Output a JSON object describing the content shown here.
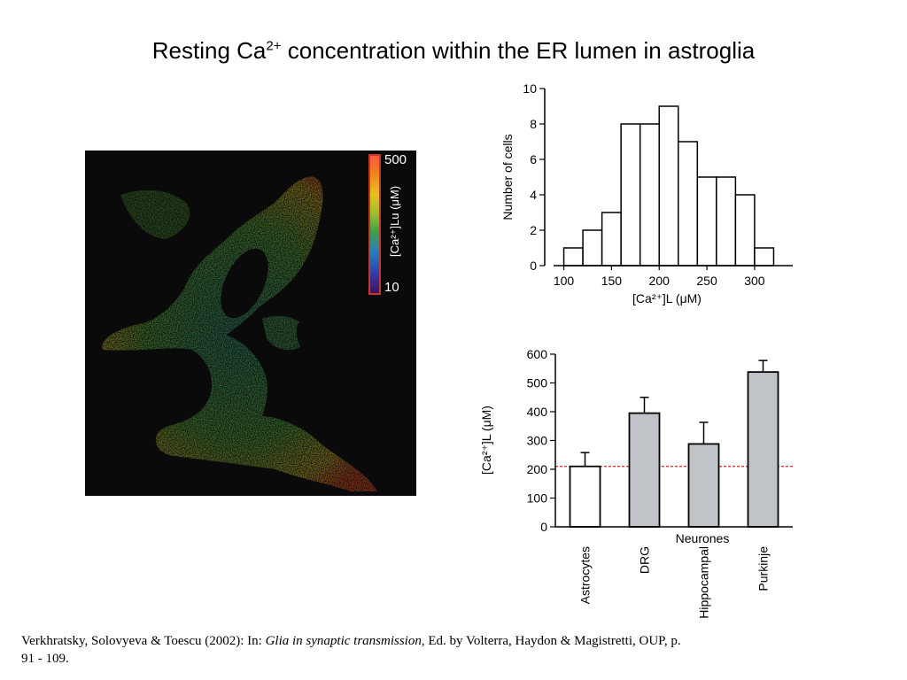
{
  "title": {
    "text": "Resting Ca",
    "sup": "2+",
    "rest": " concentration within the ER lumen in astroglia"
  },
  "image_panel": {
    "colorbar_max": "500",
    "colorbar_min": "10",
    "colorbar_label": "[Ca²⁺]Lu (μM)"
  },
  "citation": {
    "before": "Verkhratsky, Solovyeva & Toescu (2002): In: ",
    "book": "Glia in synaptic transmission",
    "after": ", Ed. by Volterra, Haydon & Magistretti, OUP, p. 91 - 109."
  },
  "chart_data": [
    {
      "type": "bar",
      "subtype": "histogram",
      "bin_edges": [
        100,
        120,
        140,
        160,
        180,
        200,
        220,
        240,
        260,
        280,
        300,
        320
      ],
      "counts": [
        1,
        2,
        3,
        8,
        8,
        9,
        7,
        5,
        5,
        4,
        1
      ],
      "xticks": [
        100,
        150,
        200,
        250,
        300
      ],
      "yticks": [
        0,
        2,
        4,
        6,
        8,
        10
      ],
      "ylabel": "Number of cells",
      "xlabel": "[Ca²⁺]L (μM)",
      "ylim": [
        0,
        10
      ],
      "xlim": [
        80,
        340
      ]
    },
    {
      "type": "bar",
      "categories": [
        "Astrocytes",
        "DRG",
        "Hippocampal",
        "Purkinje"
      ],
      "values": [
        210,
        395,
        288,
        538
      ],
      "errors": [
        48,
        55,
        75,
        40
      ],
      "fills": [
        "#ffffff",
        "#c0c4c8",
        "#c0c4c8",
        "#c0c4c8"
      ],
      "group_label": "Neurones",
      "ylabel": "[Ca²⁺]L (μM)",
      "yticks": [
        0,
        100,
        200,
        300,
        400,
        500,
        600
      ],
      "ylim": [
        0,
        600
      ],
      "reference_line": 210,
      "reference_color": "#e02020"
    }
  ]
}
